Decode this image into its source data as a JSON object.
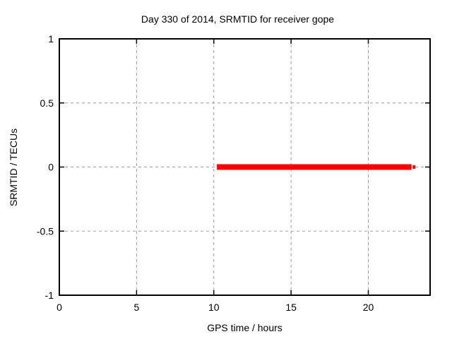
{
  "chart_data": {
    "type": "line",
    "title": "Day 330 of 2014, SRMTID for receiver gope",
    "xlabel": "GPS time / hours",
    "ylabel": "SRMTID / TECUs",
    "xlim": [
      0,
      24
    ],
    "ylim": [
      -1,
      1
    ],
    "xticks": [
      0,
      5,
      10,
      15,
      20
    ],
    "xtick_labels": [
      "0",
      "5",
      "10",
      "15",
      "20"
    ],
    "yticks": [
      1,
      0.5,
      0,
      -0.5,
      -1
    ],
    "ytick_labels": [
      "1",
      "0.5",
      "0",
      "-0.5",
      "-1"
    ],
    "grid": true,
    "grid_style": "dashed",
    "legend": "none",
    "series": [
      {
        "name": "SRMTID",
        "color": "#ff0000",
        "segments": [
          {
            "x0": 10.2,
            "x1": 22.8,
            "y": 0,
            "width": 8
          },
          {
            "x0": 22.87,
            "x1": 23.05,
            "y": 0,
            "width": 5
          }
        ]
      }
    ]
  },
  "colors": {
    "background": "#ffffff",
    "axis": "#000000",
    "grid": "#9c9c9c",
    "text": "#000000",
    "series_red": "#ff0000"
  }
}
